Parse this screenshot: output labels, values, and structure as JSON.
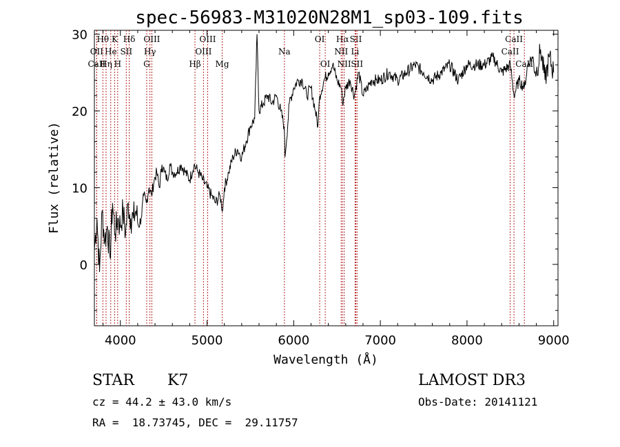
{
  "chart_data": {
    "type": "line",
    "title": "spec-56983-M31020N28M1_sp03-109.fits",
    "xlabel": "Wavelength (Å)",
    "ylabel": "Flux (relative)",
    "xlim": [
      3700,
      9050
    ],
    "ylim": [
      -8,
      30.5
    ],
    "xticks": [
      4000,
      5000,
      6000,
      7000,
      8000,
      9000
    ],
    "yticks": [
      0,
      10,
      20,
      30
    ],
    "series": [
      {
        "name": "spectrum",
        "x": [
          3700,
          3730,
          3760,
          3790,
          3820,
          3850,
          3880,
          3910,
          3940,
          3970,
          4000,
          4030,
          4060,
          4090,
          4120,
          4150,
          4180,
          4210,
          4240,
          4270,
          4300,
          4330,
          4360,
          4390,
          4420,
          4450,
          4480,
          4510,
          4540,
          4570,
          4600,
          4650,
          4700,
          4750,
          4800,
          4850,
          4900,
          4950,
          5000,
          5050,
          5100,
          5150,
          5180,
          5200,
          5250,
          5300,
          5350,
          5400,
          5450,
          5500,
          5550,
          5577,
          5600,
          5650,
          5700,
          5750,
          5800,
          5850,
          5890,
          5900,
          5950,
          6000,
          6050,
          6100,
          6150,
          6200,
          6250,
          6280,
          6300,
          6350,
          6400,
          6450,
          6500,
          6550,
          6563,
          6600,
          6650,
          6700,
          6750,
          6800,
          6850,
          6900,
          6950,
          7000,
          7100,
          7200,
          7300,
          7400,
          7500,
          7600,
          7700,
          7800,
          7900,
          8000,
          8100,
          8200,
          8300,
          8400,
          8500,
          8542,
          8600,
          8662,
          8700,
          8750,
          8800,
          8850,
          8900,
          8950,
          9000
        ],
        "y": [
          2,
          6,
          -1,
          7,
          3,
          5,
          1,
          8,
          4,
          6,
          5,
          7,
          4,
          8,
          6,
          6,
          7,
          5,
          6,
          9,
          8,
          10,
          9,
          11,
          12,
          10,
          13,
          12,
          11,
          13,
          12,
          12,
          13,
          12,
          11,
          13,
          12,
          11,
          10,
          9,
          8,
          9,
          7,
          10,
          12,
          14,
          15,
          14,
          16,
          18,
          19,
          30,
          20,
          21,
          22,
          21,
          22,
          20,
          18,
          14,
          21,
          23,
          24,
          24,
          22,
          23,
          20,
          18,
          22,
          24,
          25,
          26,
          24,
          23,
          21,
          23,
          24,
          22,
          25,
          22,
          23,
          24,
          24,
          24,
          25,
          24,
          25,
          26,
          25,
          24,
          25,
          26,
          24,
          26,
          26,
          26,
          27,
          25,
          26,
          22,
          24,
          23,
          26,
          27,
          25,
          28,
          24,
          27,
          25
        ]
      }
    ],
    "lines": [
      {
        "name": "Hθ",
        "x": 3798,
        "row": 1
      },
      {
        "name": "OII",
        "x": 3727,
        "row": 2
      },
      {
        "name": "CaII",
        "x": 3727,
        "row": 3
      },
      {
        "name": "K",
        "x": 3934,
        "row": 1
      },
      {
        "name": "He",
        "x": 3889,
        "row": 2
      },
      {
        "name": "Hη",
        "x": 3835,
        "row": 3
      },
      {
        "name": "Hδ",
        "x": 4102,
        "row": 1
      },
      {
        "name": "SII",
        "x": 4068,
        "row": 2
      },
      {
        "name": "H",
        "x": 3969,
        "row": 3
      },
      {
        "name": "OIII",
        "x": 4363,
        "row": 1
      },
      {
        "name": "Hγ",
        "x": 4341,
        "row": 2
      },
      {
        "name": "G",
        "x": 4304,
        "row": 3
      },
      {
        "name": "OIII",
        "x": 5007,
        "row": 1
      },
      {
        "name": "OIII",
        "x": 4959,
        "row": 2
      },
      {
        "name": "Hβ",
        "x": 4861,
        "row": 3
      },
      {
        "name": "Mg",
        "x": 5175,
        "row": 3
      },
      {
        "name": "Na",
        "x": 5893,
        "row": 2
      },
      {
        "name": "OI",
        "x": 6300,
        "row": 1
      },
      {
        "name": "OI",
        "x": 6364,
        "row": 3
      },
      {
        "name": "Hα",
        "x": 6563,
        "row": 1
      },
      {
        "name": "SII",
        "x": 6717,
        "row": 1
      },
      {
        "name": "NII",
        "x": 6548,
        "row": 2
      },
      {
        "name": "Li",
        "x": 6708,
        "row": 2
      },
      {
        "name": "NII",
        "x": 6583,
        "row": 3
      },
      {
        "name": "SII",
        "x": 6731,
        "row": 3
      },
      {
        "name": "CaII",
        "x": 8542,
        "row": 1
      },
      {
        "name": "CaII",
        "x": 8498,
        "row": 2
      },
      {
        "name": "CaII",
        "x": 8662,
        "row": 3
      }
    ]
  },
  "info": {
    "class": "STAR",
    "subclass": "K7",
    "survey": "LAMOST DR3",
    "cz": "cz = 44.2 ± 43.0 km/s",
    "obs_date": "Obs-Date: 20141121",
    "coords": "RA =  18.73745, DEC =  29.11757"
  }
}
